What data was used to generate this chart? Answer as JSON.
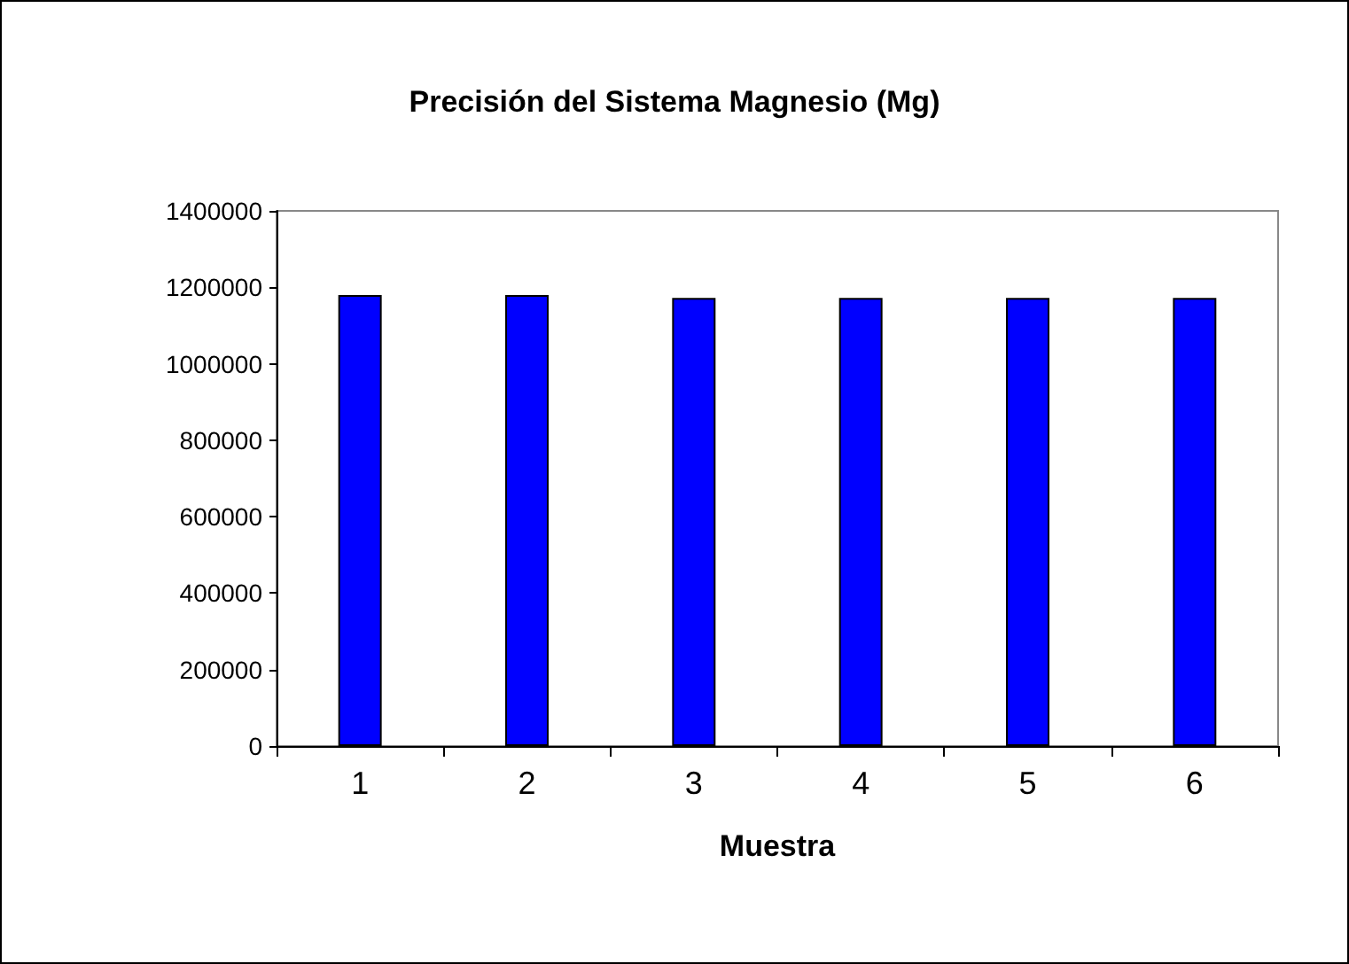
{
  "chart_data": {
    "type": "bar",
    "title": "Precisión del Sistema Magnesio (Mg)",
    "xlabel": "Muestra",
    "categories": [
      "1",
      "2",
      "3",
      "4",
      "5",
      "6"
    ],
    "values": [
      1180000,
      1180000,
      1172000,
      1172000,
      1172000,
      1172000
    ],
    "color": "#0000ff",
    "ylim": [
      0,
      1400000
    ],
    "yticks": [
      0,
      200000,
      400000,
      600000,
      800000,
      1000000,
      1200000,
      1400000
    ],
    "grid": false
  }
}
